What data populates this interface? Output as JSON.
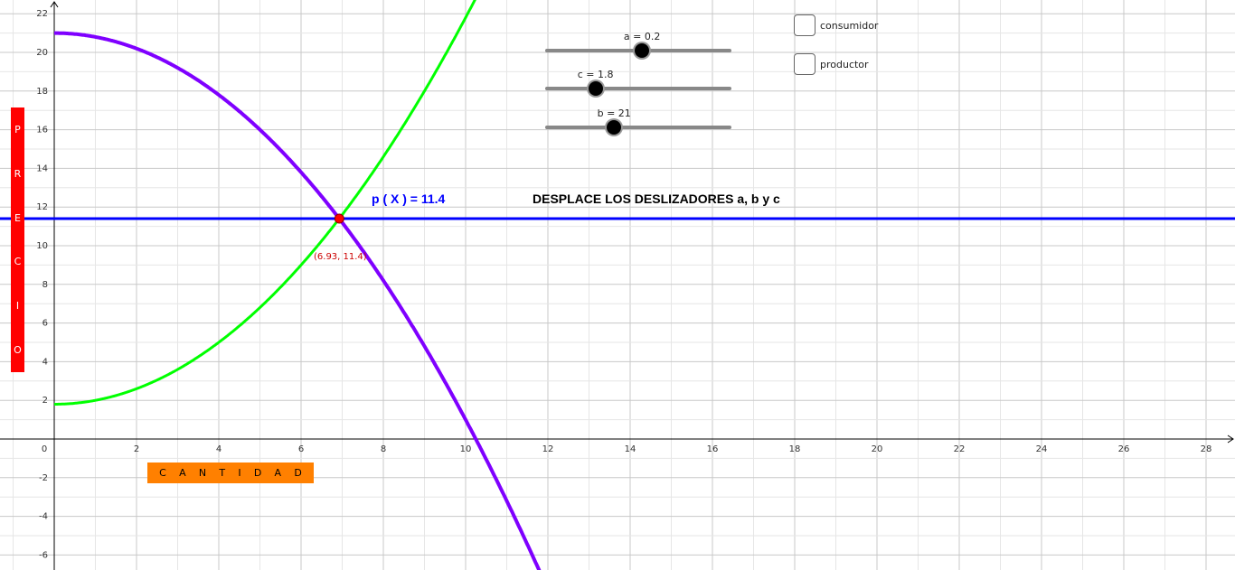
{
  "title": "DESPLACE LOS DESLIZADORES a, b y  c",
  "price_line_label": "p ( X ) = 11.4",
  "intersection_label": "(6.93, 11.4)",
  "y_axis_letters": [
    "P",
    "R",
    "E",
    "C",
    "I",
    "O"
  ],
  "x_axis_letters": [
    "C",
    "A",
    "N",
    "T",
    "I",
    "D",
    "A",
    "D"
  ],
  "sliders": [
    {
      "name": "a",
      "label": "a = 0.2",
      "value": 0.2,
      "fraction": 0.52
    },
    {
      "name": "c",
      "label": "c = 1.8",
      "value": 1.8,
      "fraction": 0.27
    },
    {
      "name": "b",
      "label": "b = 21",
      "value": 21,
      "fraction": 0.37
    }
  ],
  "checkboxes": [
    {
      "label": "consumidor",
      "checked": false
    },
    {
      "label": "productor",
      "checked": false
    }
  ],
  "colors": {
    "demand": "#7f00ff",
    "supply": "#00ff00",
    "price_line": "#0000ff",
    "point": "#ff0000",
    "precio_box": "#ff0000",
    "cantidad_box": "#ff8000"
  },
  "chart_data": {
    "type": "line",
    "xlim": [
      -1.3,
      28.6
    ],
    "ylim": [
      -6.7,
      22.3
    ],
    "x_ticks": [
      2,
      4,
      6,
      8,
      10,
      12,
      14,
      16,
      18,
      20,
      22,
      24,
      26,
      28
    ],
    "y_ticks": [
      -6,
      -4,
      -2,
      2,
      4,
      6,
      8,
      10,
      12,
      14,
      16,
      18,
      20,
      22
    ],
    "origin_label": "0",
    "grid": true,
    "series": [
      {
        "curve": "demand",
        "formula": "y = 21 - 0.2 x^2"
      },
      {
        "curve": "supply",
        "formula": "y = 1.8 + 0.2 x^2"
      },
      {
        "curve": "price",
        "formula": "y = 11.4"
      }
    ],
    "intersection": {
      "x": 6.93,
      "y": 11.4
    }
  }
}
